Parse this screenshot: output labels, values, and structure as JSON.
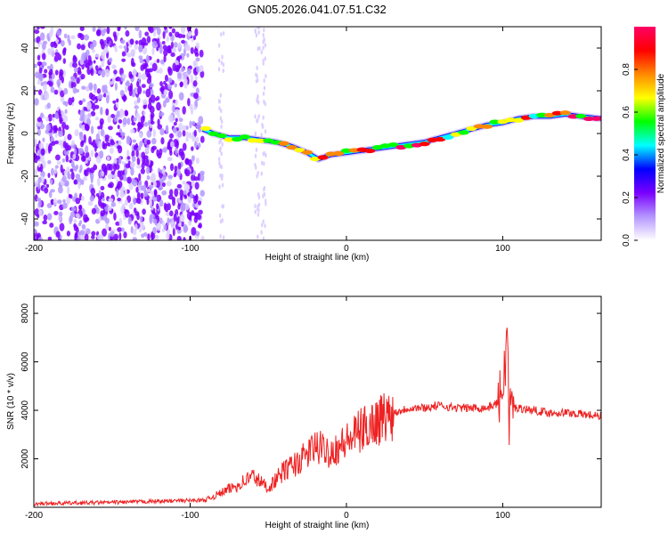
{
  "title": "GN05.2026.041.07.51.C32",
  "chart_data": [
    {
      "type": "heatmap",
      "name": "spectrogram",
      "xlabel": "Height of straight line (km)",
      "ylabel": "Frequency (Hz)",
      "xlim": [
        -200,
        163
      ],
      "ylim": [
        -50,
        50
      ],
      "xticks": [
        -200,
        -100,
        0,
        100
      ],
      "xtick_labels": [
        "-200",
        "-100",
        "0",
        "100"
      ],
      "yticks": [
        -40,
        -20,
        0,
        20,
        40
      ],
      "ytick_labels": [
        "-40",
        "-20",
        "0",
        "20",
        "40"
      ],
      "noise_region_x": [
        -200,
        -92
      ],
      "colorbar": {
        "label": "Normalized spectral amplitude",
        "range": [
          0.0,
          1.0
        ],
        "ticks": [
          0.0,
          0.2,
          0.4,
          0.6,
          0.8
        ],
        "tick_labels": [
          "0.0",
          "0.2",
          "0.4",
          "0.6",
          "0.8"
        ],
        "colors": [
          "#ffffff",
          "#b496ff",
          "#7a00ff",
          "#0000ff",
          "#00ffff",
          "#00ff00",
          "#ffff00",
          "#ff8800",
          "#ff0000",
          "#ff0066"
        ]
      },
      "signal_ridge": {
        "x": [
          -92,
          -85,
          -75,
          -65,
          -55,
          -45,
          -35,
          -25,
          -18,
          -10,
          0,
          10,
          20,
          30,
          40,
          50,
          60,
          70,
          80,
          90,
          100,
          110,
          120,
          130,
          140,
          150,
          163
        ],
        "y": [
          2,
          0,
          -2,
          -2,
          -3,
          -4,
          -6,
          -9,
          -12,
          -10,
          -9,
          -8,
          -7,
          -6,
          -5,
          -4,
          -2,
          0,
          2,
          4,
          5,
          7,
          8,
          8,
          9,
          8,
          7
        ]
      }
    },
    {
      "type": "line",
      "name": "snr",
      "xlabel": "Height of straight line (km)",
      "ylabel": "SNR (10 * v/v)",
      "xlim": [
        -200,
        163
      ],
      "ylim": [
        0,
        8700
      ],
      "xticks": [
        -200,
        -100,
        0,
        100
      ],
      "xtick_labels": [
        "-200",
        "-100",
        "0",
        "100"
      ],
      "yticks": [
        2000,
        4000,
        6000,
        8000
      ],
      "ytick_labels": [
        "2000",
        "4000",
        "6000",
        "8000"
      ],
      "color": "#ee2222",
      "series": {
        "x": [
          -200,
          -150,
          -120,
          -90,
          -80,
          -70,
          -60,
          -50,
          -40,
          -30,
          -20,
          -10,
          0,
          10,
          20,
          30,
          40,
          50,
          60,
          70,
          80,
          90,
          97,
          100,
          102,
          103,
          104,
          105,
          106,
          110,
          120,
          130,
          140,
          150,
          163
        ],
        "y": [
          150,
          200,
          250,
          300,
          600,
          900,
          1300,
          800,
          1500,
          1900,
          2500,
          2300,
          2700,
          3200,
          3600,
          3900,
          4100,
          4100,
          4200,
          4100,
          4100,
          4100,
          4300,
          5000,
          6200,
          7800,
          3000,
          4500,
          4100,
          4100,
          4000,
          3900,
          3900,
          3850,
          3750
        ]
      }
    }
  ]
}
